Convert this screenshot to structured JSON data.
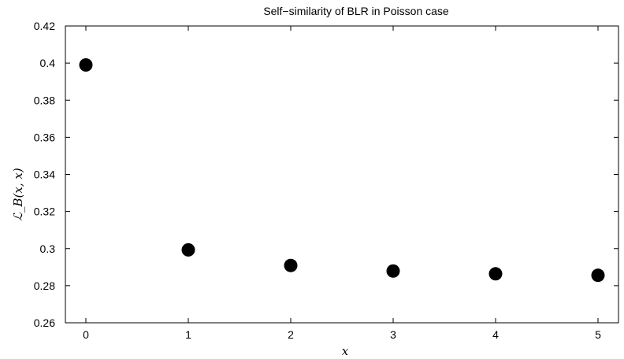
{
  "chart_data": {
    "type": "scatter",
    "title": "Self−similarity of BLR in Poisson case",
    "xlabel": "x",
    "ylabel": "ℒ_B(x, x)",
    "xlim": [
      -0.2,
      5.2
    ],
    "ylim": [
      0.26,
      0.42
    ],
    "xticks": [
      0,
      1,
      2,
      3,
      4,
      5
    ],
    "yticks": [
      0.26,
      0.28,
      0.3,
      0.32,
      0.34,
      0.36,
      0.38,
      0.4,
      0.42
    ],
    "xtick_labels": [
      "0",
      "1",
      "2",
      "3",
      "4",
      "5"
    ],
    "ytick_labels": [
      "0.26",
      "0.28",
      "0.3",
      "0.32",
      "0.34",
      "0.36",
      "0.38",
      "0.4",
      "0.42"
    ],
    "grid": false,
    "marker_color": "#000000",
    "points": [
      {
        "x": 0,
        "y": 0.399
      },
      {
        "x": 1,
        "y": 0.2993
      },
      {
        "x": 2,
        "y": 0.2909
      },
      {
        "x": 3,
        "y": 0.2879
      },
      {
        "x": 4,
        "y": 0.2864
      },
      {
        "x": 5,
        "y": 0.2856
      }
    ]
  }
}
